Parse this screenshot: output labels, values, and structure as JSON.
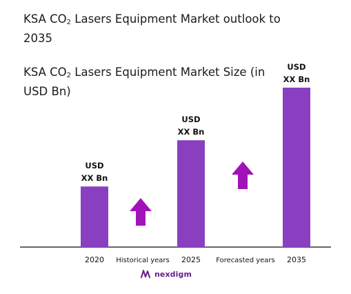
{
  "title_parts": {
    "pre": "KSA CO",
    "sub": "2",
    "post": " Lasers Equipment Market outlook to 2035"
  },
  "subtitle_parts": {
    "pre": "KSA CO",
    "sub": "2",
    "post": " Lasers Equipment Market Size (in USD Bn)"
  },
  "brand": {
    "name": "nexdigm",
    "logo_icon": "nexdigm-logo-icon"
  },
  "colors": {
    "bar": "#8a3fc1",
    "arrow": "#a112b8",
    "axis": "#333333"
  },
  "chart_data": {
    "type": "bar",
    "categories": [
      "2020",
      "2025",
      "2035"
    ],
    "series": [
      {
        "values": [
          0.38,
          0.67,
          1.0
        ]
      }
    ],
    "value_note": "relative heights only; actual values hidden",
    "data_labels": [
      [
        "USD",
        "XX Bn"
      ],
      [
        "USD",
        "XX Bn"
      ],
      [
        "USD",
        "XX Bn"
      ]
    ],
    "period_labels": [
      "Historical years",
      "Forecasted years"
    ],
    "period_arrows": [
      "up-arrow-icon",
      "up-arrow-icon"
    ]
  }
}
